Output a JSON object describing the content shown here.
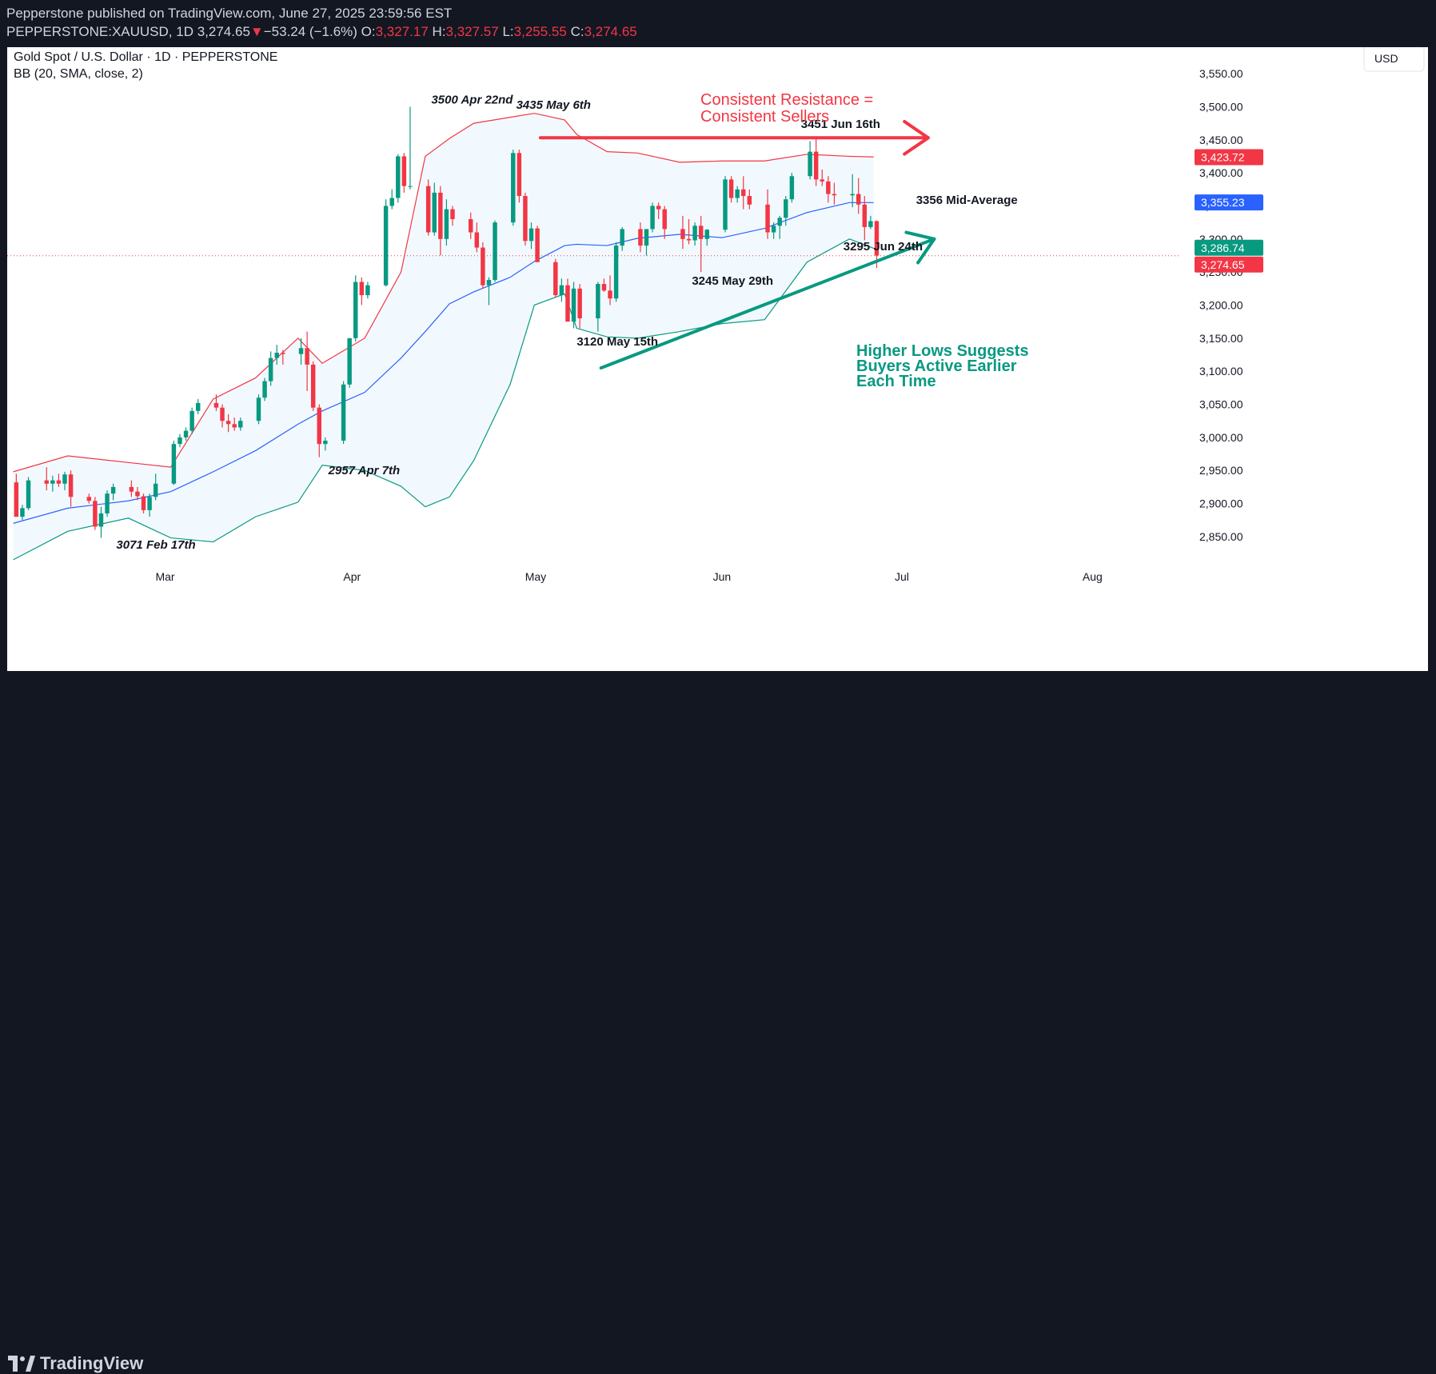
{
  "header": {
    "published": "Pepperstone published on TradingView.com, June 27, 2025 23:59:56 EST",
    "symbol": "PEPPERSTONE:XAUUSD, 1D",
    "last": "3,274.65",
    "change_arrow": "▼",
    "change": "−53.24 (−1.6%)",
    "o_label": "O:",
    "o": "3,327.17",
    "h_label": "H:",
    "h": "3,327.57",
    "l_label": "L:",
    "l": "3,255.55",
    "c_label": "C:",
    "c": "3,274.65"
  },
  "legend": {
    "title": "Gold Spot / U.S. Dollar · 1D · PEPPERSTONE",
    "indicator": "BB (20, SMA, close, 2)"
  },
  "currency": "USD",
  "brand": "TradingView",
  "colors": {
    "up": "#089981",
    "down": "#f23645",
    "basis": "#2962ff",
    "upper": "#f23645",
    "lower": "#089981",
    "fill": "#2196f3"
  },
  "chart_data": {
    "type": "candlestick",
    "ylim": [
      2810,
      3590
    ],
    "yticks": [
      2850,
      2900,
      2950,
      3000,
      3050,
      3100,
      3150,
      3200,
      3250,
      3300,
      3350,
      3400,
      3450,
      3500,
      3550
    ],
    "ytick_labels": [
      "2,850.00",
      "2,900.00",
      "2,950.00",
      "3,000.00",
      "3,050.00",
      "3,100.00",
      "3,150.00",
      "3,200.00",
      "3,250.00",
      "3,300.00",
      "3,350.00",
      "3,400.00",
      "3,450.00",
      "3,500.00",
      "3,550.00"
    ],
    "x_start": "2025-02-04",
    "x_end": "2025-08-15",
    "xticks": [
      {
        "date": "2025-03-01",
        "label": "Mar"
      },
      {
        "date": "2025-04-01",
        "label": "Apr"
      },
      {
        "date": "2025-05-01",
        "label": "May"
      },
      {
        "date": "2025-06-01",
        "label": "Jun"
      },
      {
        "date": "2025-07-01",
        "label": "Jul"
      },
      {
        "date": "2025-08-01",
        "label": "Aug"
      }
    ],
    "candles": [
      [
        "2025-02-05",
        2932,
        2945,
        2880,
        2880
      ],
      [
        "2025-02-06",
        2880,
        2898,
        2875,
        2893
      ],
      [
        "2025-02-07",
        2893,
        2940,
        2890,
        2935
      ],
      [
        "2025-02-10",
        2935,
        2955,
        2920,
        2930
      ],
      [
        "2025-02-11",
        2930,
        2942,
        2918,
        2935
      ],
      [
        "2025-02-12",
        2935,
        2945,
        2925,
        2930
      ],
      [
        "2025-02-13",
        2930,
        2948,
        2920,
        2944
      ],
      [
        "2025-02-14",
        2944,
        2950,
        2895,
        2910
      ],
      [
        "2025-02-17",
        2910,
        2915,
        2900,
        2904
      ],
      [
        "2025-02-18",
        2904,
        2910,
        2860,
        2865
      ],
      [
        "2025-02-19",
        2865,
        2895,
        2848,
        2885
      ],
      [
        "2025-02-20",
        2885,
        2920,
        2880,
        2915
      ],
      [
        "2025-02-21",
        2915,
        2930,
        2905,
        2925
      ],
      [
        "2025-02-24",
        2925,
        2935,
        2910,
        2918
      ],
      [
        "2025-02-25",
        2918,
        2925,
        2905,
        2911
      ],
      [
        "2025-02-26",
        2911,
        2915,
        2885,
        2890
      ],
      [
        "2025-02-27",
        2890,
        2915,
        2880,
        2910
      ],
      [
        "2025-02-28",
        2910,
        2945,
        2905,
        2930
      ],
      [
        "2025-03-03",
        2930,
        2995,
        2928,
        2990
      ],
      [
        "2025-03-04",
        2990,
        3005,
        2985,
        3000
      ],
      [
        "2025-03-05",
        3000,
        3015,
        2995,
        3010
      ],
      [
        "2025-03-06",
        3010,
        3045,
        3005,
        3040
      ],
      [
        "2025-03-07",
        3040,
        3058,
        3035,
        3052
      ],
      [
        "2025-03-10",
        3052,
        3065,
        3040,
        3045
      ],
      [
        "2025-03-11",
        3045,
        3050,
        3015,
        3025
      ],
      [
        "2025-03-12",
        3025,
        3035,
        3008,
        3020
      ],
      [
        "2025-03-13",
        3020,
        3030,
        3010,
        3015
      ],
      [
        "2025-03-14",
        3015,
        3030,
        3010,
        3025
      ],
      [
        "2025-03-17",
        3025,
        3065,
        3020,
        3060
      ],
      [
        "2025-03-18",
        3060,
        3090,
        3055,
        3085
      ],
      [
        "2025-03-19",
        3085,
        3130,
        3078,
        3120
      ],
      [
        "2025-03-20",
        3120,
        3140,
        3110,
        3128
      ],
      [
        "2025-03-21",
        3128,
        3132,
        3110,
        3126
      ],
      [
        "2025-03-24",
        3126,
        3150,
        3110,
        3135
      ],
      [
        "2025-03-25",
        3135,
        3160,
        3070,
        3110
      ],
      [
        "2025-03-26",
        3110,
        3115,
        3040,
        3045
      ],
      [
        "2025-03-27",
        3045,
        3050,
        2970,
        2990
      ],
      [
        "2025-03-28",
        2990,
        3000,
        2980,
        2995
      ],
      [
        "2025-03-31",
        2995,
        3085,
        2990,
        3080
      ],
      [
        "2025-04-01",
        3080,
        3150,
        3075,
        3150
      ],
      [
        "2025-04-02",
        3150,
        3245,
        3145,
        3235
      ],
      [
        "2025-04-03",
        3235,
        3242,
        3200,
        3215
      ],
      [
        "2025-04-04",
        3215,
        3235,
        3210,
        3230
      ],
      [
        "2025-04-07",
        3230,
        3360,
        3228,
        3350
      ],
      [
        "2025-04-08",
        3350,
        3375,
        3345,
        3362
      ],
      [
        "2025-04-09",
        3362,
        3428,
        3355,
        3425
      ],
      [
        "2025-04-10",
        3425,
        3430,
        3370,
        3380
      ],
      [
        "2025-04-11",
        3380,
        3500,
        3375,
        3380
      ],
      [
        "2025-04-14",
        3380,
        3390,
        3305,
        3310
      ],
      [
        "2025-04-15",
        3310,
        3385,
        3305,
        3370
      ],
      [
        "2025-04-16",
        3370,
        3380,
        3275,
        3300
      ],
      [
        "2025-04-17",
        3300,
        3360,
        3290,
        3345
      ],
      [
        "2025-04-18",
        3345,
        3350,
        3320,
        3330
      ],
      [
        "2025-04-21",
        3330,
        3340,
        3300,
        3310
      ],
      [
        "2025-04-22",
        3310,
        3325,
        3280,
        3287
      ],
      [
        "2025-04-23",
        3287,
        3295,
        3225,
        3230
      ],
      [
        "2025-04-24",
        3230,
        3242,
        3200,
        3238
      ],
      [
        "2025-04-25",
        3238,
        3328,
        3235,
        3325
      ],
      [
        "2025-04-28",
        3325,
        3435,
        3320,
        3430
      ],
      [
        "2025-04-29",
        3430,
        3435,
        3355,
        3365
      ],
      [
        "2025-04-30",
        3365,
        3370,
        3290,
        3297
      ],
      [
        "2025-05-01",
        3297,
        3325,
        3285,
        3316
      ],
      [
        "2025-05-02",
        3316,
        3320,
        3265,
        3265
      ],
      [
        "2025-05-05",
        3265,
        3270,
        3212,
        3215
      ],
      [
        "2025-05-06",
        3215,
        3240,
        3205,
        3230
      ],
      [
        "2025-05-07",
        3230,
        3240,
        3175,
        3175
      ],
      [
        "2025-05-08",
        3175,
        3235,
        3165,
        3225
      ],
      [
        "2025-05-09",
        3225,
        3232,
        3165,
        3180
      ],
      [
        "2025-05-12",
        3180,
        3235,
        3160,
        3232
      ],
      [
        "2025-05-13",
        3232,
        3240,
        3220,
        3222
      ],
      [
        "2025-05-14",
        3222,
        3245,
        3200,
        3210
      ],
      [
        "2025-05-15",
        3210,
        3295,
        3205,
        3290
      ],
      [
        "2025-05-16",
        3290,
        3318,
        3282,
        3315
      ],
      [
        "2025-05-19",
        3315,
        3325,
        3280,
        3290
      ],
      [
        "2025-05-20",
        3290,
        3315,
        3275,
        3315
      ],
      [
        "2025-05-21",
        3315,
        3355,
        3310,
        3350
      ],
      [
        "2025-05-22",
        3350,
        3355,
        3330,
        3345
      ],
      [
        "2025-05-23",
        3345,
        3350,
        3300,
        3315
      ],
      [
        "2025-05-26",
        3315,
        3335,
        3285,
        3300
      ],
      [
        "2025-05-27",
        3300,
        3330,
        3292,
        3298
      ],
      [
        "2025-05-28",
        3298,
        3325,
        3290,
        3320
      ],
      [
        "2025-05-29",
        3320,
        3335,
        3250,
        3300
      ],
      [
        "2025-05-30",
        3300,
        3315,
        3290,
        3314
      ],
      [
        "2025-06-02",
        3314,
        3395,
        3310,
        3390
      ],
      [
        "2025-06-03",
        3390,
        3395,
        3355,
        3362
      ],
      [
        "2025-06-04",
        3362,
        3380,
        3355,
        3375
      ],
      [
        "2025-06-05",
        3375,
        3395,
        3345,
        3365
      ],
      [
        "2025-06-06",
        3365,
        3375,
        3345,
        3352
      ],
      [
        "2025-06-09",
        3352,
        3375,
        3300,
        3310
      ],
      [
        "2025-06-10",
        3310,
        3325,
        3300,
        3320
      ],
      [
        "2025-06-11",
        3320,
        3335,
        3300,
        3332
      ],
      [
        "2025-06-12",
        3332,
        3365,
        3320,
        3360
      ],
      [
        "2025-06-13",
        3360,
        3400,
        3355,
        3395
      ],
      [
        "2025-06-16",
        3395,
        3448,
        3390,
        3432
      ],
      [
        "2025-06-17",
        3432,
        3451,
        3380,
        3390
      ],
      [
        "2025-06-18",
        3390,
        3405,
        3380,
        3387
      ],
      [
        "2025-06-19",
        3387,
        3395,
        3355,
        3368
      ],
      [
        "2025-06-20",
        3368,
        3385,
        3352,
        3366
      ],
      [
        "2025-06-23",
        3366,
        3398,
        3348,
        3368
      ],
      [
        "2025-06-24",
        3368,
        3392,
        3338,
        3352
      ],
      [
        "2025-06-25",
        3352,
        3365,
        3298,
        3318
      ],
      [
        "2025-06-26",
        3318,
        3335,
        3315,
        3327
      ],
      [
        "2025-06-27",
        3327,
        3328,
        3256,
        3275
      ]
    ],
    "bollinger": {
      "upper": [
        [
          "2025-02-05",
          2948
        ],
        [
          "2025-02-14",
          2972
        ],
        [
          "2025-02-24",
          2962
        ],
        [
          "2025-03-03",
          2955
        ],
        [
          "2025-03-10",
          3058
        ],
        [
          "2025-03-17",
          3090
        ],
        [
          "2025-03-24",
          3150
        ],
        [
          "2025-03-28",
          3112
        ],
        [
          "2025-04-04",
          3150
        ],
        [
          "2025-04-10",
          3250
        ],
        [
          "2025-04-14",
          3425
        ],
        [
          "2025-04-18",
          3452
        ],
        [
          "2025-04-22",
          3475
        ],
        [
          "2025-04-28",
          3484
        ],
        [
          "2025-05-02",
          3490
        ],
        [
          "2025-05-07",
          3480
        ],
        [
          "2025-05-09",
          3458
        ],
        [
          "2025-05-14",
          3432
        ],
        [
          "2025-05-19",
          3430
        ],
        [
          "2025-05-26",
          3416
        ],
        [
          "2025-06-02",
          3418
        ],
        [
          "2025-06-09",
          3418
        ],
        [
          "2025-06-16",
          3428
        ],
        [
          "2025-06-23",
          3425
        ],
        [
          "2025-06-27",
          3424
        ]
      ],
      "basis": [
        [
          "2025-02-05",
          2870
        ],
        [
          "2025-02-14",
          2893
        ],
        [
          "2025-02-24",
          2904
        ],
        [
          "2025-03-03",
          2918
        ],
        [
          "2025-03-10",
          2948
        ],
        [
          "2025-03-17",
          2980
        ],
        [
          "2025-03-24",
          3020
        ],
        [
          "2025-03-28",
          3040
        ],
        [
          "2025-04-04",
          3068
        ],
        [
          "2025-04-10",
          3120
        ],
        [
          "2025-04-14",
          3160
        ],
        [
          "2025-04-18",
          3202
        ],
        [
          "2025-04-22",
          3220
        ],
        [
          "2025-04-28",
          3242
        ],
        [
          "2025-05-02",
          3266
        ],
        [
          "2025-05-07",
          3290
        ],
        [
          "2025-05-09",
          3292
        ],
        [
          "2025-05-14",
          3290
        ],
        [
          "2025-05-19",
          3301
        ],
        [
          "2025-05-26",
          3307
        ],
        [
          "2025-06-02",
          3302
        ],
        [
          "2025-06-09",
          3316
        ],
        [
          "2025-06-16",
          3340
        ],
        [
          "2025-06-23",
          3355
        ],
        [
          "2025-06-27",
          3355
        ]
      ],
      "lower": [
        [
          "2025-02-05",
          2815
        ],
        [
          "2025-02-14",
          2858
        ],
        [
          "2025-02-24",
          2878
        ],
        [
          "2025-03-03",
          2848
        ],
        [
          "2025-03-10",
          2842
        ],
        [
          "2025-03-17",
          2880
        ],
        [
          "2025-03-24",
          2902
        ],
        [
          "2025-03-28",
          2958
        ],
        [
          "2025-04-04",
          2950
        ],
        [
          "2025-04-10",
          2926
        ],
        [
          "2025-04-14",
          2895
        ],
        [
          "2025-04-18",
          2910
        ],
        [
          "2025-04-22",
          2965
        ],
        [
          "2025-04-28",
          3080
        ],
        [
          "2025-05-02",
          3200
        ],
        [
          "2025-05-07",
          3217
        ],
        [
          "2025-05-09",
          3165
        ],
        [
          "2025-05-14",
          3152
        ],
        [
          "2025-05-19",
          3150
        ],
        [
          "2025-05-26",
          3160
        ],
        [
          "2025-06-02",
          3172
        ],
        [
          "2025-06-09",
          3178
        ],
        [
          "2025-06-16",
          3265
        ],
        [
          "2025-06-23",
          3300
        ],
        [
          "2025-06-27",
          3286
        ]
      ]
    },
    "price_labels": [
      {
        "value": 3423.72,
        "text": "3,423.72",
        "color": "#f23645"
      },
      {
        "value": 3355.23,
        "text": "3,355.23",
        "color": "#2962ff"
      },
      {
        "value": 3286.74,
        "text": "3,286.74",
        "color": "#089981"
      },
      {
        "value": 3274.65,
        "text": "3,274.65",
        "color": "#f23645"
      }
    ],
    "last_price_line": 3274.65,
    "annotations": [
      {
        "text": "3500 Apr 22nd",
        "x": "2025-04-15",
        "y": 3505,
        "italic": true
      },
      {
        "text": "3435 May 6th",
        "x": "2025-04-29",
        "y": 3497,
        "italic": true
      },
      {
        "text": "3451 Jun 16th",
        "x": "2025-06-15",
        "y": 3468,
        "italic": false
      },
      {
        "text": "3356 Mid-Average",
        "x": "2025-07-04",
        "y": 3353,
        "italic": false
      },
      {
        "text": "3295 Jun 24th",
        "x": "2025-06-22",
        "y": 3283,
        "italic": false
      },
      {
        "text": "3245 May 29th",
        "x": "2025-05-28",
        "y": 3231,
        "italic": false
      },
      {
        "text": "3120 May 15th",
        "x": "2025-05-09",
        "y": 3139,
        "italic": false
      },
      {
        "text": "2957 Apr 7th",
        "x": "2025-03-29",
        "y": 2944,
        "italic": true
      },
      {
        "text": "3071 Feb 17th",
        "x": "2025-02-22",
        "y": 2832,
        "italic": true
      }
    ],
    "callouts": {
      "resistance": [
        "Consistent Resistance =",
        "Consistent Sellers"
      ],
      "support": [
        "Higher Lows Suggests",
        "Buyers Active Earlier",
        "Each Time"
      ]
    },
    "resistance_arrow": {
      "from": [
        "2025-05-03",
        3453
      ],
      "to": [
        "2025-07-06",
        3453
      ]
    },
    "support_arrow": {
      "from": [
        "2025-05-13",
        3105
      ],
      "to": [
        "2025-07-07",
        3300
      ]
    }
  }
}
